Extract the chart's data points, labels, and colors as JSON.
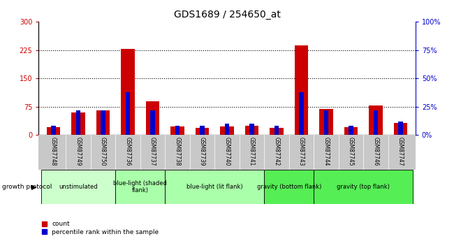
{
  "title": "GDS1689 / 254650_at",
  "samples": [
    "GSM87748",
    "GSM87749",
    "GSM87750",
    "GSM87736",
    "GSM87737",
    "GSM87738",
    "GSM87739",
    "GSM87740",
    "GSM87741",
    "GSM87742",
    "GSM87743",
    "GSM87744",
    "GSM87745",
    "GSM87746",
    "GSM87747"
  ],
  "count_values": [
    20,
    60,
    65,
    228,
    90,
    22,
    18,
    22,
    25,
    18,
    238,
    68,
    20,
    78,
    32
  ],
  "percentile_values": [
    24,
    66,
    66,
    114,
    66,
    24,
    24,
    30,
    30,
    24,
    114,
    66,
    24,
    66,
    36
  ],
  "ylim_left": [
    0,
    300
  ],
  "ylim_right": [
    0,
    100
  ],
  "yticks_left": [
    0,
    75,
    150,
    225,
    300
  ],
  "yticks_right": [
    0,
    25,
    50,
    75,
    100
  ],
  "ytick_labels_left": [
    "0",
    "75",
    "150",
    "225",
    "300"
  ],
  "ytick_labels_right": [
    "0%",
    "25%",
    "50%",
    "75%",
    "100%"
  ],
  "color_count": "#cc0000",
  "color_percentile": "#0000cc",
  "group_spans": [
    {
      "start": 0,
      "end": 2,
      "label": "unstimulated",
      "color": "#ccffcc"
    },
    {
      "start": 3,
      "end": 4,
      "label": "blue-light (shaded\nflank)",
      "color": "#aaffaa"
    },
    {
      "start": 5,
      "end": 8,
      "label": "blue-light (lit flank)",
      "color": "#aaffaa"
    },
    {
      "start": 9,
      "end": 10,
      "label": "gravity (bottom flank)",
      "color": "#55ee55"
    },
    {
      "start": 11,
      "end": 14,
      "label": "gravity (top flank)",
      "color": "#55ee55"
    }
  ],
  "protocol_label": "growth protocol",
  "legend_count": "count",
  "legend_percentile": "percentile rank within the sample",
  "bg_color": "#ffffff",
  "title_fontsize": 10,
  "tick_fontsize": 7,
  "label_fontsize": 7
}
